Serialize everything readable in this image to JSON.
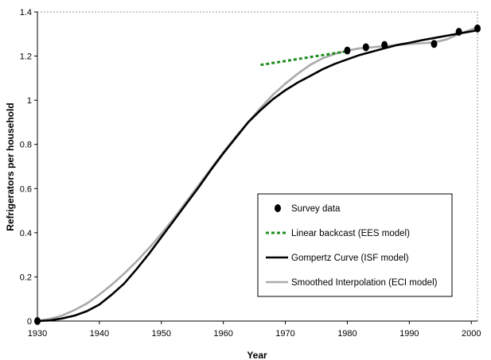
{
  "chart_data": {
    "type": "line",
    "title": "",
    "xlabel": "Year",
    "ylabel": "Refrigerators per household",
    "xlim": [
      1930,
      2001
    ],
    "ylim": [
      0,
      1.4
    ],
    "x_ticks": [
      "1930",
      "1940",
      "1950",
      "1960",
      "1970",
      "1980",
      "1990",
      "2000"
    ],
    "y_ticks": [
      "0",
      "0.2",
      "0.4",
      "0.6",
      "0.8",
      "1",
      "1.2",
      "1.4"
    ],
    "legend_position": "bottom-right",
    "series": [
      {
        "name": "Survey data",
        "kind": "scatter",
        "color": "#000000",
        "points": [
          [
            1930,
            0.0
          ],
          [
            1980,
            1.225
          ],
          [
            1983,
            1.24
          ],
          [
            1986,
            1.25
          ],
          [
            1994,
            1.255
          ],
          [
            1998,
            1.31
          ],
          [
            2001,
            1.325
          ]
        ]
      },
      {
        "name": "Linear backcast (EES model)",
        "kind": "dashed-line",
        "color": "#1e8c1e",
        "points": [
          [
            1966,
            1.16
          ],
          [
            1980,
            1.222
          ]
        ]
      },
      {
        "name": "Gompertz Curve (ISF model)",
        "kind": "line",
        "color": "#000000",
        "points": [
          [
            1930,
            0.0
          ],
          [
            1932,
            0.003
          ],
          [
            1934,
            0.012
          ],
          [
            1936,
            0.025
          ],
          [
            1938,
            0.045
          ],
          [
            1940,
            0.075
          ],
          [
            1942,
            0.12
          ],
          [
            1944,
            0.17
          ],
          [
            1946,
            0.235
          ],
          [
            1948,
            0.305
          ],
          [
            1950,
            0.38
          ],
          [
            1952,
            0.455
          ],
          [
            1954,
            0.53
          ],
          [
            1956,
            0.605
          ],
          [
            1958,
            0.685
          ],
          [
            1960,
            0.76
          ],
          [
            1962,
            0.83
          ],
          [
            1964,
            0.9
          ],
          [
            1966,
            0.955
          ],
          [
            1968,
            1.005
          ],
          [
            1970,
            1.045
          ],
          [
            1972,
            1.08
          ],
          [
            1974,
            1.11
          ],
          [
            1976,
            1.14
          ],
          [
            1978,
            1.165
          ],
          [
            1980,
            1.185
          ],
          [
            1982,
            1.205
          ],
          [
            1984,
            1.22
          ],
          [
            1986,
            1.235
          ],
          [
            1988,
            1.25
          ],
          [
            1990,
            1.26
          ],
          [
            1992,
            1.272
          ],
          [
            1994,
            1.282
          ],
          [
            1996,
            1.292
          ],
          [
            1998,
            1.302
          ],
          [
            2000,
            1.312
          ],
          [
            2001,
            1.317
          ]
        ]
      },
      {
        "name": "Smoothed Interpolation (ECI model)",
        "kind": "line",
        "color": "#aaaaaa",
        "points": [
          [
            1930,
            0.0
          ],
          [
            1932,
            0.01
          ],
          [
            1934,
            0.025
          ],
          [
            1936,
            0.05
          ],
          [
            1938,
            0.08
          ],
          [
            1940,
            0.12
          ],
          [
            1942,
            0.165
          ],
          [
            1944,
            0.215
          ],
          [
            1946,
            0.27
          ],
          [
            1948,
            0.33
          ],
          [
            1950,
            0.395
          ],
          [
            1952,
            0.465
          ],
          [
            1954,
            0.54
          ],
          [
            1956,
            0.615
          ],
          [
            1958,
            0.69
          ],
          [
            1960,
            0.765
          ],
          [
            1962,
            0.835
          ],
          [
            1964,
            0.9
          ],
          [
            1966,
            0.965
          ],
          [
            1968,
            1.025
          ],
          [
            1970,
            1.075
          ],
          [
            1972,
            1.12
          ],
          [
            1974,
            1.16
          ],
          [
            1976,
            1.19
          ],
          [
            1978,
            1.21
          ],
          [
            1980,
            1.225
          ],
          [
            1982,
            1.235
          ],
          [
            1984,
            1.24
          ],
          [
            1986,
            1.245
          ],
          [
            1988,
            1.25
          ],
          [
            1990,
            1.255
          ],
          [
            1992,
            1.258
          ],
          [
            1994,
            1.262
          ],
          [
            1996,
            1.275
          ],
          [
            1998,
            1.3
          ],
          [
            2000,
            1.32
          ],
          [
            2001,
            1.33
          ]
        ]
      }
    ]
  }
}
